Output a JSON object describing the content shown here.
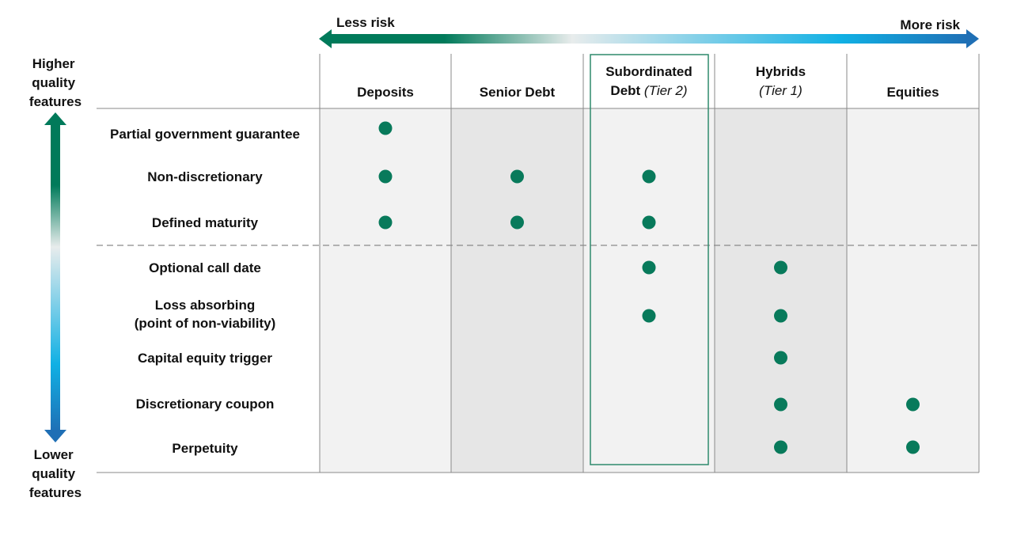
{
  "risk_axis": {
    "less_label": "Less risk",
    "more_label": "More risk"
  },
  "quality_axis": {
    "higher_label": [
      "Higher",
      "quality",
      "features"
    ],
    "lower_label": [
      "Lower",
      "quality",
      "features"
    ]
  },
  "columns": [
    {
      "lines": [
        {
          "text": "Deposits",
          "italic": ""
        }
      ]
    },
    {
      "lines": [
        {
          "text": "Senior Debt",
          "italic": ""
        }
      ]
    },
    {
      "lines": [
        {
          "text": "Subordinated",
          "italic": ""
        },
        {
          "text": "Debt ",
          "italic": "(Tier 2)"
        }
      ],
      "highlighted": true
    },
    {
      "lines": [
        {
          "text": "Hybrids",
          "italic": ""
        },
        {
          "text": "",
          "italic": "(Tier 1)"
        }
      ]
    },
    {
      "lines": [
        {
          "text": "Equities",
          "italic": ""
        }
      ]
    }
  ],
  "rows": [
    {
      "label": [
        "Partial government guarantee"
      ],
      "has": [
        true,
        false,
        false,
        false,
        false
      ]
    },
    {
      "label": [
        "Non-discretionary"
      ],
      "has": [
        true,
        true,
        true,
        false,
        false
      ]
    },
    {
      "label": [
        "Defined maturity"
      ],
      "has": [
        true,
        true,
        true,
        false,
        false
      ]
    },
    {
      "label": [
        "Optional call date"
      ],
      "has": [
        false,
        false,
        true,
        true,
        false
      ]
    },
    {
      "label": [
        "Loss absorbing",
        "(point of non-viability)"
      ],
      "has": [
        false,
        false,
        true,
        true,
        false
      ]
    },
    {
      "label": [
        "Capital equity trigger"
      ],
      "has": [
        false,
        false,
        false,
        true,
        false
      ]
    },
    {
      "label": [
        "Discretionary coupon"
      ],
      "has": [
        false,
        false,
        false,
        true,
        true
      ]
    },
    {
      "label": [
        "Perpetuity"
      ],
      "has": [
        false,
        false,
        false,
        true,
        true
      ]
    }
  ],
  "divider_after_row": 2,
  "colors": {
    "dot": "#087a5b",
    "highlight_border": "#2e8a6c",
    "band_light": "#f2f2f2",
    "band_dark": "#e6e6e6",
    "gradient_green": "#007a5a",
    "gradient_mid": "#e8ecec",
    "gradient_cyan": "#10b0e4",
    "gradient_blue": "#1f6fb5"
  }
}
